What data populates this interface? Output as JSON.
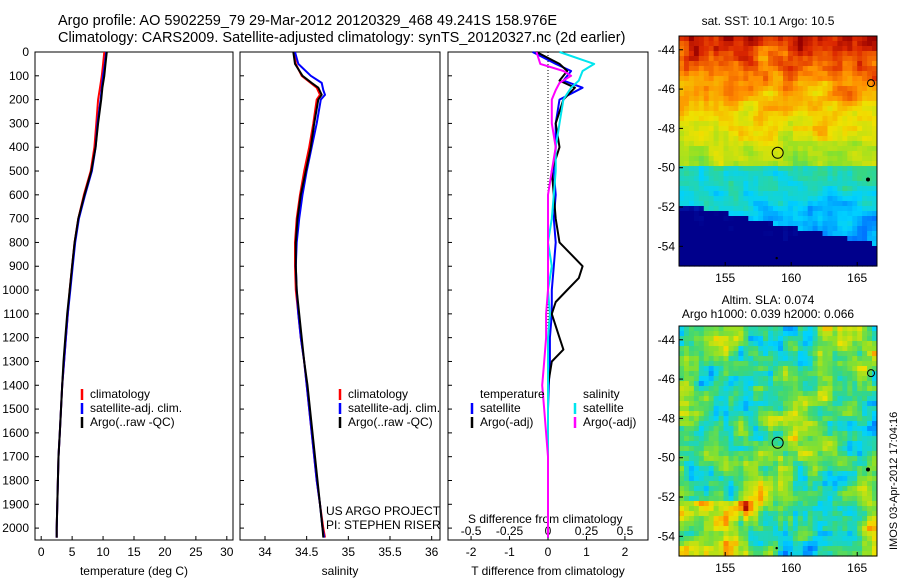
{
  "header": {
    "line1": "Argo profile: AO 5902259_79 29-Mar-2012 20120329_468 49.241S 158.976E",
    "line2": "Climatology: CARS2009. Satellite-adjusted climatology: synTS_20120327.nc (2d earlier)"
  },
  "stamp": "IMOS 03-Apr-2012 17:04:16",
  "colors": {
    "climatology": "#ff0000",
    "satellite": "#0000ff",
    "argo": "#000000",
    "s_satellite": "#00e5ee",
    "s_argo": "#ff00ff"
  },
  "chart_data": [
    {
      "id": "temperature",
      "type": "line",
      "xlabel": "temperature (deg C)",
      "ylabel": "",
      "xlim": [
        -1,
        31
      ],
      "ylim": [
        2050,
        0
      ],
      "xticks": [
        0,
        5,
        10,
        15,
        20,
        25,
        30
      ],
      "yticks": [
        0,
        100,
        200,
        300,
        400,
        500,
        600,
        700,
        800,
        900,
        1000,
        1100,
        1200,
        1300,
        1400,
        1500,
        1600,
        1700,
        1800,
        1900,
        2000
      ],
      "legend": [
        "climatology",
        "satellite-adj. clim.",
        "Argo(..raw -QC)"
      ],
      "legend_position": "middle-left",
      "series": [
        {
          "name": "climatology",
          "color": "#ff0000",
          "depth": [
            0,
            50,
            100,
            150,
            200,
            300,
            400,
            500,
            600,
            700,
            800,
            900,
            1000,
            1100,
            1200,
            1300,
            1400,
            1500,
            1600,
            1700,
            1800,
            1900,
            2000,
            2040
          ],
          "values": [
            10.2,
            10.0,
            9.8,
            9.5,
            9.2,
            8.9,
            8.6,
            8.0,
            6.9,
            6.0,
            5.4,
            5.0,
            4.6,
            4.3,
            4.0,
            3.7,
            3.4,
            3.2,
            3.0,
            2.8,
            2.7,
            2.6,
            2.5,
            2.5
          ]
        },
        {
          "name": "satellite-adj. clim.",
          "color": "#0000ff",
          "depth": [
            0,
            50,
            100,
            150,
            200,
            300,
            400,
            500,
            600,
            700,
            800,
            900,
            1000,
            1100,
            1200,
            1300,
            1400,
            1500,
            1600,
            1700,
            1800,
            1900,
            2000,
            2040
          ],
          "values": [
            10.5,
            10.3,
            10.0,
            9.8,
            9.6,
            9.1,
            8.8,
            8.2,
            7.1,
            6.1,
            5.5,
            5.1,
            4.7,
            4.3,
            4.0,
            3.7,
            3.4,
            3.2,
            3.0,
            2.8,
            2.7,
            2.6,
            2.5,
            2.5
          ]
        },
        {
          "name": "Argo(..raw -QC)",
          "color": "#000000",
          "depth": [
            0,
            50,
            100,
            150,
            200,
            300,
            400,
            500,
            600,
            700,
            800,
            900,
            1000,
            1100,
            1200,
            1300,
            1400,
            1500,
            1600,
            1700,
            1800,
            1900,
            2000,
            2040
          ],
          "values": [
            10.6,
            10.4,
            10.2,
            9.9,
            9.7,
            9.2,
            8.8,
            8.1,
            7.0,
            6.0,
            5.4,
            5.0,
            4.6,
            4.2,
            3.9,
            3.6,
            3.4,
            3.2,
            3.0,
            2.8,
            2.7,
            2.6,
            2.5,
            2.5
          ]
        }
      ]
    },
    {
      "id": "salinity",
      "type": "line",
      "xlabel": "salinity",
      "xlim": [
        33.7,
        36.1
      ],
      "ylim": [
        2050,
        0
      ],
      "xticks": [
        34,
        34.5,
        35,
        35.5,
        36
      ],
      "legend": [
        "climatology",
        "satellite-adj. clim.",
        "Argo(..raw -QC)"
      ],
      "legend_position": "middle-right",
      "annotation_line1": "US ARGO PROJECT",
      "annotation_line2": "PI: STEPHEN RISER",
      "series": [
        {
          "name": "climatology",
          "color": "#ff0000",
          "depth": [
            0,
            50,
            100,
            150,
            180,
            200,
            300,
            400,
            500,
            600,
            700,
            800,
            900,
            1000,
            1100,
            1200,
            1300,
            1400,
            1500,
            1600,
            1700,
            1800,
            1900,
            2000,
            2040
          ],
          "values": [
            34.35,
            34.37,
            34.44,
            34.62,
            34.66,
            34.62,
            34.58,
            34.53,
            34.47,
            34.42,
            34.38,
            34.36,
            34.36,
            34.37,
            34.4,
            34.43,
            34.47,
            34.5,
            34.53,
            34.56,
            34.59,
            34.62,
            34.66,
            34.7,
            34.72
          ]
        },
        {
          "name": "satellite-adj. clim.",
          "color": "#0000ff",
          "depth": [
            0,
            50,
            100,
            130,
            160,
            180,
            200,
            300,
            400,
            500,
            600,
            700,
            800,
            900,
            1000,
            1100,
            1200,
            1300,
            1400,
            1500,
            1600,
            1700,
            1800,
            1900,
            2000,
            2040
          ],
          "values": [
            34.36,
            34.4,
            34.55,
            34.68,
            34.7,
            34.72,
            34.67,
            34.62,
            34.56,
            34.5,
            34.45,
            34.41,
            34.38,
            34.37,
            34.38,
            34.4,
            34.43,
            34.47,
            34.5,
            34.53,
            34.56,
            34.59,
            34.62,
            34.66,
            34.69,
            34.71
          ]
        },
        {
          "name": "Argo(..raw -QC)",
          "color": "#000000",
          "depth": [
            0,
            50,
            100,
            130,
            150,
            180,
            200,
            300,
            400,
            500,
            600,
            700,
            800,
            900,
            1000,
            1100,
            1200,
            1300,
            1400,
            1500,
            1600,
            1700,
            1800,
            1900,
            2000,
            2040
          ],
          "values": [
            34.34,
            34.36,
            34.45,
            34.56,
            34.64,
            34.68,
            34.64,
            34.59,
            34.55,
            34.49,
            34.43,
            34.39,
            34.37,
            34.37,
            34.38,
            34.41,
            34.44,
            34.47,
            34.51,
            34.54,
            34.57,
            34.6,
            34.63,
            34.66,
            34.69,
            34.7
          ]
        }
      ]
    },
    {
      "id": "difference",
      "type": "line",
      "xlabel": "T difference from climatology",
      "xlim": [
        -2.6,
        2.6
      ],
      "ylim": [
        2050,
        0
      ],
      "xticks": [
        -2,
        -1,
        0,
        1,
        2
      ],
      "top_axis_label": "S difference from climatology",
      "top_ticks": [
        "-0.5",
        "-0.25",
        "0",
        "0.25",
        "0.5"
      ],
      "top_tick_values": [
        -2,
        -1,
        0,
        1,
        2
      ],
      "legend_titles": [
        "temperature",
        "salinity"
      ],
      "legend": [
        "satellite",
        "Argo(-adj)",
        "satellite",
        "Argo(-adj)"
      ],
      "series": [
        {
          "name": "T satellite",
          "color": "#0000ff",
          "depth": [
            0,
            50,
            80,
            120,
            150,
            200,
            300,
            400,
            500,
            600,
            700,
            800,
            900,
            1000,
            1100,
            1200,
            1300,
            1400,
            1500,
            1600,
            1700,
            1800,
            1900,
            2000,
            2040
          ],
          "values": [
            -0.4,
            0.2,
            0.6,
            0.4,
            0.9,
            0.3,
            0.2,
            0.2,
            0.15,
            0.2,
            0.15,
            0.2,
            0.15,
            0.1,
            0.1,
            0.05,
            0.05,
            0.02,
            0.0,
            0.0,
            0.0,
            0.0,
            0.0,
            0.0,
            0.0
          ]
        },
        {
          "name": "T Argo(-adj)",
          "color": "#000000",
          "depth": [
            0,
            50,
            80,
            120,
            150,
            200,
            300,
            400,
            500,
            600,
            700,
            800,
            850,
            900,
            950,
            1000,
            1050,
            1100,
            1200,
            1250,
            1300,
            1400,
            1500,
            1600,
            1700,
            1800,
            1900,
            2000,
            2040
          ],
          "values": [
            -0.3,
            0.3,
            0.5,
            0.3,
            0.7,
            0.4,
            0.2,
            0.3,
            0.1,
            0.15,
            0.2,
            0.3,
            0.6,
            0.9,
            0.8,
            0.5,
            0.2,
            0.1,
            0.3,
            0.4,
            0.1,
            0.0,
            0.0,
            0.0,
            0.0,
            0.0,
            0.0,
            0.0,
            0.0
          ]
        },
        {
          "name": "S satellite",
          "color": "#00e5ee",
          "depth": [
            0,
            50,
            80,
            120,
            150,
            200,
            300,
            400,
            500,
            600,
            700,
            800,
            900,
            1000,
            1100,
            1200,
            1300,
            1400,
            1500,
            1600,
            1700,
            1800,
            1900,
            2000,
            2040
          ],
          "values": [
            0.3,
            1.2,
            0.9,
            0.8,
            0.6,
            0.4,
            0.3,
            0.2,
            0.2,
            0.15,
            0.1,
            0.0,
            0.1,
            0.0,
            0.05,
            0.0,
            0.0,
            0.0,
            0.0,
            0.0,
            0.0,
            0.0,
            0.0,
            0.0,
            0.0
          ]
        },
        {
          "name": "S Argo(-adj)",
          "color": "#ff00ff",
          "depth": [
            0,
            50,
            80,
            100,
            130,
            160,
            200,
            300,
            400,
            500,
            600,
            700,
            800,
            900,
            1000,
            1100,
            1200,
            1300,
            1400,
            1500,
            1600,
            1700,
            1800,
            1900,
            2000,
            2040
          ],
          "values": [
            -0.3,
            -0.2,
            0.4,
            0.6,
            0.3,
            0.2,
            0.1,
            0.1,
            0.2,
            0.1,
            0.0,
            0.0,
            0.0,
            0.0,
            0.0,
            -0.05,
            -0.05,
            -0.1,
            -0.15,
            -0.1,
            -0.05,
            0.0,
            0.0,
            0.0,
            0.0,
            0.0
          ]
        }
      ]
    },
    {
      "id": "sst_map",
      "type": "heatmap",
      "title": "sat. SST: 10.1  Argo: 10.5",
      "xlim": [
        151.5,
        166.5
      ],
      "ylim": [
        -55,
        -43.3
      ],
      "xticks": [
        155,
        160,
        165
      ],
      "yticks": [
        -44,
        -46,
        -48,
        -50,
        -52,
        -54
      ],
      "marker": {
        "lon": 158.976,
        "lat": -49.241
      }
    },
    {
      "id": "sla_map",
      "type": "heatmap",
      "title": "Altim. SLA: 0.074",
      "subtitle": "Argo h1000: 0.039 h2000: 0.066",
      "xlim": [
        151.5,
        166.5
      ],
      "ylim": [
        -55,
        -43.3
      ],
      "xticks": [
        155,
        160,
        165
      ],
      "yticks": [
        -44,
        -46,
        -48,
        -50,
        -52,
        -54
      ],
      "marker": {
        "lon": 158.976,
        "lat": -49.241
      }
    }
  ]
}
